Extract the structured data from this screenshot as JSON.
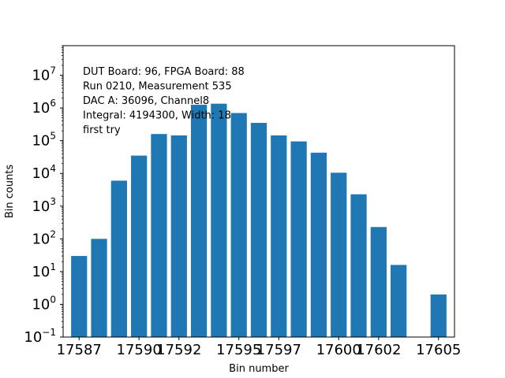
{
  "chart_data": {
    "type": "bar",
    "xlabel": "Bin number",
    "ylabel": "Bin counts",
    "yscale": "log",
    "ylim": [
      0.1,
      80000000
    ],
    "xlim": [
      17586.2,
      17605.8
    ],
    "x": [
      17587,
      17588,
      17589,
      17590,
      17591,
      17592,
      17593,
      17594,
      17595,
      17596,
      17597,
      17598,
      17599,
      17600,
      17601,
      17602,
      17603,
      17604,
      17605
    ],
    "values": [
      30,
      100,
      6000,
      35000,
      160000,
      145000,
      1250000,
      1350000,
      700000,
      350000,
      145000,
      95000,
      43000,
      10500,
      2300,
      230,
      16,
      0,
      2
    ],
    "bar_color": "#1f77b4",
    "x_ticks": [
      "17587",
      "17590",
      "17592",
      "17595",
      "17597",
      "17600",
      "17602",
      "17605"
    ],
    "y_ticks": [
      {
        "base": "10",
        "exp": "−1"
      },
      {
        "base": "10",
        "exp": "0"
      },
      {
        "base": "10",
        "exp": "1"
      },
      {
        "base": "10",
        "exp": "2"
      },
      {
        "base": "10",
        "exp": "3"
      },
      {
        "base": "10",
        "exp": "4"
      },
      {
        "base": "10",
        "exp": "5"
      },
      {
        "base": "10",
        "exp": "6"
      },
      {
        "base": "10",
        "exp": "7"
      }
    ],
    "annotation": [
      "DUT Board: 96, FPGA Board: 88",
      "Run 0210, Measurement 535",
      "DAC A: 36096, Channel8",
      "Integral: 4194300, Width: 18",
      "first try"
    ]
  }
}
